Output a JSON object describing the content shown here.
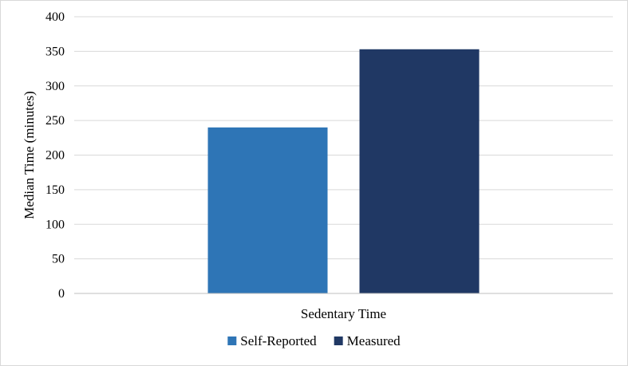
{
  "chart_data": {
    "type": "bar",
    "categories": [
      "Sedentary Time"
    ],
    "series": [
      {
        "name": "Self-Reported",
        "values": [
          240
        ],
        "color": "#2e75b6"
      },
      {
        "name": "Measured",
        "values": [
          353
        ],
        "color": "#203864"
      }
    ],
    "ylabel": "Median Time (minutes)",
    "ylim": [
      0,
      400
    ],
    "yticks": [
      0,
      50,
      100,
      150,
      200,
      250,
      300,
      350,
      400
    ],
    "grid": true,
    "legend": "bottom",
    "colors": {
      "grid": "#d9d9d9",
      "axis": "#bfbfbf"
    }
  }
}
